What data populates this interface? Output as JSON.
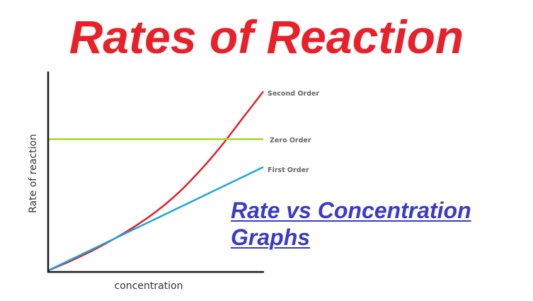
{
  "header": {
    "title": "Rates of Reaction",
    "subtitle_line1": "Rate vs Concentration",
    "subtitle_line2": "Graphs"
  },
  "colors": {
    "title": "#e8202a",
    "subtitle": "#3a3acb",
    "second_order": "#e0202a",
    "zero_order": "#a6d82a",
    "first_order": "#1ea3e0",
    "axis": "#1a1a1a"
  },
  "chart_data": {
    "type": "line",
    "title": "",
    "xlabel": "concentration",
    "ylabel": "Rate of reaction",
    "xlim": [
      0,
      10
    ],
    "ylim": [
      0,
      10
    ],
    "grid": false,
    "ticks": false,
    "legend_position": "inline-right",
    "x": [
      0,
      1,
      2,
      3,
      4,
      5,
      6,
      7,
      8,
      9,
      10
    ],
    "series": [
      {
        "name": "Second Order",
        "values": [
          0.0,
          0.46,
          0.97,
          1.55,
          2.2,
          2.95,
          3.85,
          4.95,
          6.2,
          7.6,
          9.0
        ]
      },
      {
        "name": "Zero Order",
        "values": [
          6.6,
          6.6,
          6.6,
          6.6,
          6.6,
          6.6,
          6.6,
          6.6,
          6.6,
          6.6,
          6.6
        ]
      },
      {
        "name": "First Order",
        "values": [
          0.0,
          0.52,
          1.04,
          1.56,
          2.08,
          2.6,
          3.12,
          3.64,
          4.16,
          4.68,
          5.2
        ]
      }
    ]
  }
}
